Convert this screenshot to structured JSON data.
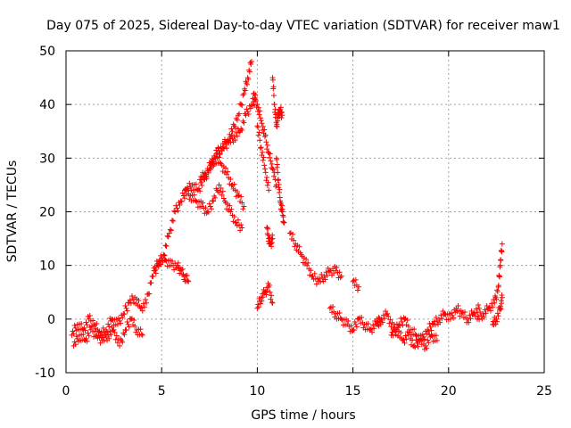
{
  "chart_data": {
    "type": "scatter",
    "title": "Day 075 of 2025, Sidereal Day-to-day VTEC variation (SDTVAR) for receiver maw1",
    "xlabel": "GPS time / hours",
    "ylabel": "SDTVAR / TECUs",
    "xlim": [
      0,
      25
    ],
    "ylim": [
      -10,
      50
    ],
    "xticks": [
      0,
      5,
      10,
      15,
      20,
      25
    ],
    "yticks": [
      -10,
      0,
      10,
      20,
      30,
      40,
      50
    ],
    "grid": true,
    "marker": "+",
    "series": [
      {
        "name": "SDTVAR",
        "color": "#ff0000",
        "segments": [
          {
            "x": [
              0.3,
              0.6,
              0.9,
              1.2,
              1.5,
              1.8,
              2.1,
              2.4,
              2.7,
              3.0,
              3.3,
              3.6,
              3.9,
              4.2,
              4.5,
              4.8,
              5.1,
              5.4,
              5.7,
              6.0,
              6.3,
              6.6,
              6.9,
              7.2,
              7.5,
              7.8,
              8.1,
              8.4,
              8.7,
              9.0,
              9.3,
              9.5,
              9.7
            ],
            "y": [
              -3,
              -1,
              -2,
              0,
              -1,
              -3,
              -2,
              0,
              -1,
              1,
              3,
              4,
              2,
              3,
              8,
              10,
              12,
              16,
              20,
              22,
              24,
              25,
              24,
              26,
              28,
              30,
              32,
              33,
              35,
              38,
              42,
              45,
              48
            ]
          },
          {
            "x": [
              0.4,
              0.7,
              1.0,
              1.3,
              1.6,
              1.9,
              2.2,
              2.5,
              2.8,
              3.1,
              3.4,
              3.7,
              4.0
            ],
            "y": [
              -5,
              -3,
              -4,
              -2,
              -3,
              -4,
              -3,
              -2,
              -5,
              -2,
              0,
              -2,
              -3
            ]
          },
          {
            "x": [
              4.6,
              4.9,
              5.2,
              5.5,
              5.8,
              6.0,
              6.2,
              6.4
            ],
            "y": [
              9,
              11,
              11,
              10,
              10,
              9,
              8,
              7
            ]
          },
          {
            "x": [
              6.2,
              6.5,
              6.8,
              7.1,
              7.4,
              7.7,
              8.0,
              8.3,
              8.6,
              8.9,
              9.2
            ],
            "y": [
              24,
              23,
              22,
              21,
              20,
              22,
              25,
              22,
              20,
              18,
              17
            ]
          },
          {
            "x": [
              7.0,
              7.3,
              7.6,
              7.9,
              8.2,
              8.5,
              8.8,
              9.1,
              9.4,
              9.7,
              9.9
            ],
            "y": [
              26,
              27,
              29,
              31,
              32,
              33,
              34,
              35,
              38,
              40,
              41
            ]
          },
          {
            "x": [
              7.5,
              7.8,
              8.1,
              8.4,
              8.7,
              9.0,
              9.3
            ],
            "y": [
              28,
              30,
              29,
              27,
              25,
              23,
              21
            ]
          },
          {
            "x": [
              9.8,
              10.0,
              10.2,
              10.4,
              10.6,
              10.8,
              11.0
            ],
            "y": [
              42,
              40,
              37,
              34,
              31,
              28,
              25
            ]
          },
          {
            "x": [
              10.0,
              10.2,
              10.4,
              10.6
            ],
            "y": [
              36,
              32,
              28,
              24
            ]
          },
          {
            "x": [
              10.5,
              10.6,
              10.7,
              10.8
            ],
            "y": [
              17,
              15,
              14,
              15
            ]
          },
          {
            "x": [
              10.8,
              10.9,
              11.0,
              11.1,
              11.2,
              11.3
            ],
            "y": [
              45,
              40,
              36,
              38,
              39,
              38
            ]
          },
          {
            "x": [
              11.0,
              11.1,
              11.2,
              11.3,
              11.4
            ],
            "y": [
              30,
              26,
              22,
              20,
              18
            ]
          },
          {
            "x": [
              10.0,
              10.2,
              10.4,
              10.6,
              10.8
            ],
            "y": [
              2,
              4,
              5,
              6,
              3
            ]
          },
          {
            "x": [
              11.7,
              12.0,
              12.3,
              12.6,
              12.9,
              13.2,
              13.5,
              13.8,
              14.1,
              14.4
            ],
            "y": [
              16,
              14,
              12,
              10,
              8,
              7,
              8,
              9,
              9,
              8
            ]
          },
          {
            "x": [
              13.8,
              14.1,
              14.4,
              14.7,
              15.0,
              15.3,
              15.6,
              15.9,
              16.2,
              16.5
            ],
            "y": [
              2,
              1,
              0,
              -1,
              -2,
              0,
              -1,
              -2,
              -1,
              0
            ]
          },
          {
            "x": [
              15.0,
              15.3
            ],
            "y": [
              7,
              6
            ]
          },
          {
            "x": [
              16.2,
              16.5,
              16.8,
              17.1,
              17.4,
              17.7,
              18.0,
              18.3,
              18.6,
              18.9,
              19.2,
              19.5,
              19.8,
              20.1,
              20.4,
              20.7,
              21.0,
              21.3,
              21.6
            ],
            "y": [
              -1,
              0,
              1,
              -2,
              -1,
              0,
              -2,
              -3,
              -4,
              -2,
              -1,
              0,
              1,
              0,
              2,
              1,
              0,
              1,
              2
            ]
          },
          {
            "x": [
              17.0,
              17.3,
              17.6,
              17.9,
              18.2,
              18.5,
              18.8,
              19.1,
              19.4
            ],
            "y": [
              -3,
              -2,
              -4,
              -3,
              -5,
              -4,
              -5,
              -3,
              -4
            ]
          },
          {
            "x": [
              21.5,
              21.8,
              22.1,
              22.4,
              22.6,
              22.7,
              22.8
            ],
            "y": [
              0,
              1,
              2,
              3,
              6,
              10,
              14
            ]
          },
          {
            "x": [
              22.3,
              22.5,
              22.7,
              22.8
            ],
            "y": [
              -1,
              0,
              2,
              4
            ]
          }
        ]
      }
    ]
  }
}
